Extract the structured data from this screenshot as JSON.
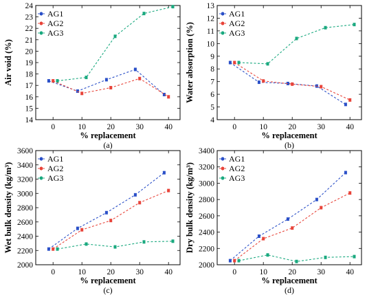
{
  "chart_data": [
    {
      "type": "line",
      "panel_label": "(a)",
      "xlabel": "% replacement",
      "ylabel": "Air void (%)",
      "xlim": [
        -6,
        44
      ],
      "ylim": [
        14,
        24
      ],
      "xticks": [
        0,
        10,
        20,
        30,
        40
      ],
      "yticks": [
        14,
        15,
        16,
        17,
        18,
        19,
        20,
        21,
        22,
        23,
        24
      ],
      "legend": "top-left",
      "series": [
        {
          "name": "AG1",
          "color": "#2b50c8",
          "x": [
            -1.5,
            8.5,
            18.5,
            28.5,
            38.5
          ],
          "y": [
            17.4,
            16.5,
            17.5,
            18.4,
            16.2
          ]
        },
        {
          "name": "AG2",
          "color": "#e8443a",
          "x": [
            0,
            10,
            20,
            30,
            40
          ],
          "y": [
            17.4,
            16.3,
            16.8,
            17.6,
            16.0
          ]
        },
        {
          "name": "AG3",
          "color": "#1aa97f",
          "x": [
            1.5,
            11.5,
            21.5,
            31.5,
            41.5
          ],
          "y": [
            17.4,
            17.7,
            21.3,
            23.3,
            23.9
          ]
        }
      ]
    },
    {
      "type": "line",
      "panel_label": "(b)",
      "xlabel": "% replacement",
      "ylabel": "Water absorption (%)",
      "xlim": [
        -6,
        44
      ],
      "ylim": [
        4,
        13
      ],
      "xticks": [
        0,
        10,
        20,
        30,
        40
      ],
      "yticks": [
        4,
        5,
        6,
        7,
        8,
        9,
        10,
        11,
        12,
        13
      ],
      "legend": "top-left",
      "series": [
        {
          "name": "AG1",
          "color": "#2b50c8",
          "x": [
            -1.5,
            8.5,
            18.5,
            28.5,
            38.5
          ],
          "y": [
            8.5,
            6.95,
            6.85,
            6.65,
            5.2
          ]
        },
        {
          "name": "AG2",
          "color": "#e8443a",
          "x": [
            0,
            10,
            20,
            30,
            40
          ],
          "y": [
            8.5,
            7.05,
            6.8,
            6.6,
            5.55
          ]
        },
        {
          "name": "AG3",
          "color": "#1aa97f",
          "x": [
            1.5,
            11.5,
            21.5,
            31.5,
            41.5
          ],
          "y": [
            8.5,
            8.4,
            10.4,
            11.25,
            11.5
          ]
        }
      ]
    },
    {
      "type": "line",
      "panel_label": "(c)",
      "xlabel": "% replacement",
      "ylabel": "Wet bulk density (kg/m³)",
      "xlim": [
        -6,
        44
      ],
      "ylim": [
        2000,
        3600
      ],
      "xticks": [
        0,
        10,
        20,
        30,
        40
      ],
      "yticks": [
        2000,
        2200,
        2400,
        2600,
        2800,
        3000,
        3200,
        3400,
        3600
      ],
      "legend": "top-left",
      "series": [
        {
          "name": "AG1",
          "color": "#2b50c8",
          "x": [
            -1.5,
            8.5,
            18.5,
            28.5,
            38.5
          ],
          "y": [
            2220,
            2510,
            2730,
            2980,
            3290
          ]
        },
        {
          "name": "AG2",
          "color": "#e8443a",
          "x": [
            0,
            10,
            20,
            30,
            40
          ],
          "y": [
            2220,
            2490,
            2620,
            2870,
            3040
          ]
        },
        {
          "name": "AG3",
          "color": "#1aa97f",
          "x": [
            1.5,
            11.5,
            21.5,
            31.5,
            41.5
          ],
          "y": [
            2220,
            2290,
            2250,
            2320,
            2330
          ]
        }
      ]
    },
    {
      "type": "line",
      "panel_label": "(d)",
      "xlabel": "% replacement",
      "ylabel": "Dry bulk density (kg/m³)",
      "xlim": [
        -6,
        44
      ],
      "ylim": [
        2000,
        3400
      ],
      "xticks": [
        0,
        10,
        20,
        30,
        40
      ],
      "yticks": [
        2000,
        2200,
        2400,
        2600,
        2800,
        3000,
        3200,
        3400
      ],
      "legend": "top-left",
      "series": [
        {
          "name": "AG1",
          "color": "#2b50c8",
          "x": [
            -1.5,
            8.5,
            18.5,
            28.5,
            38.5
          ],
          "y": [
            2050,
            2350,
            2560,
            2800,
            3130
          ]
        },
        {
          "name": "AG2",
          "color": "#e8443a",
          "x": [
            0,
            10,
            20,
            30,
            40
          ],
          "y": [
            2050,
            2320,
            2450,
            2700,
            2880
          ]
        },
        {
          "name": "AG3",
          "color": "#1aa97f",
          "x": [
            1.5,
            11.5,
            21.5,
            31.5,
            41.5
          ],
          "y": [
            2050,
            2120,
            2040,
            2090,
            2100
          ]
        }
      ]
    }
  ]
}
